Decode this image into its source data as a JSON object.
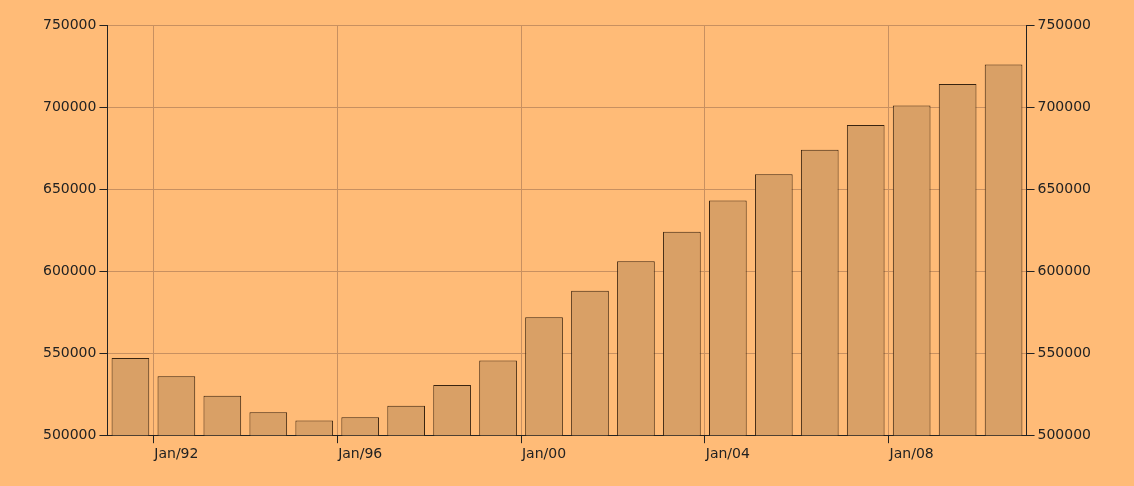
{
  "chart_data": {
    "type": "bar",
    "categories": [
      null,
      "Jan/92",
      null,
      null,
      null,
      "Jan/96",
      null,
      null,
      null,
      "Jan/00",
      null,
      null,
      null,
      "Jan/04",
      null,
      null,
      null,
      "Jan/08",
      null,
      null
    ],
    "values": [
      547000,
      536000,
      524000,
      514000,
      509000,
      511000,
      518000,
      530600,
      545600,
      571900,
      588000,
      606000,
      624000,
      643000,
      659000,
      674000,
      689000,
      701000,
      714000,
      726000
    ],
    "color": "#d9a066",
    "ylim": [
      500000,
      750000
    ],
    "yticks": [
      500000,
      550000,
      600000,
      650000,
      700000,
      750000
    ],
    "y2lim": [
      500000,
      750000
    ],
    "y2ticks": [
      500000,
      550000,
      600000,
      650000,
      700000,
      750000
    ],
    "grid": true
  }
}
